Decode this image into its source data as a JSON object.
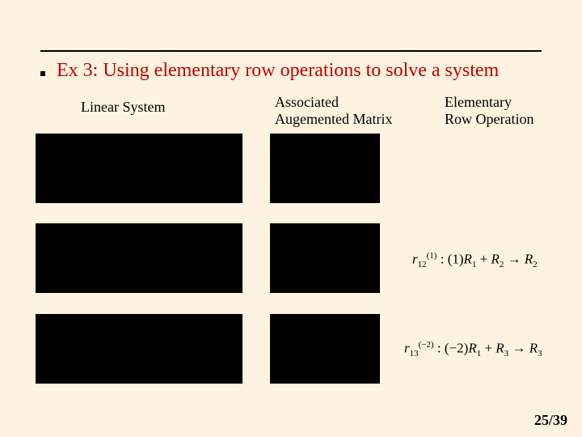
{
  "title": "Ex 3:  Using elementary row operations to solve a system",
  "columns": {
    "c1": "Linear System",
    "c2": "Associated\nAugemented Matrix",
    "c3": "Elementary\nRow Operation"
  },
  "row_ops": {
    "op1": {
      "r_label": "r",
      "r_sub": "12",
      "r_sup": "(1)",
      "colon": " : ",
      "coeff": "(1)",
      "Ra": "R",
      "Ra_sub": "1",
      "plus": " + ",
      "Rb": "R",
      "Rb_sub": "2",
      "arrow": " → ",
      "Rc": "R",
      "Rc_sub": "2"
    },
    "op2": {
      "r_label": "r",
      "r_sub": "13",
      "r_sup": "(−2)",
      "colon": " : ",
      "coeff": "(−2)",
      "Ra": "R",
      "Ra_sub": "1",
      "plus": " + ",
      "Rb": "R",
      "Rb_sub": "3",
      "arrow": " → ",
      "Rc": "R",
      "Rc_sub": "3"
    }
  },
  "page": {
    "current": "25",
    "sep": "/",
    "total": "39"
  },
  "blocks": {
    "linear_system_rows": 3,
    "matrix_rows": 3
  }
}
